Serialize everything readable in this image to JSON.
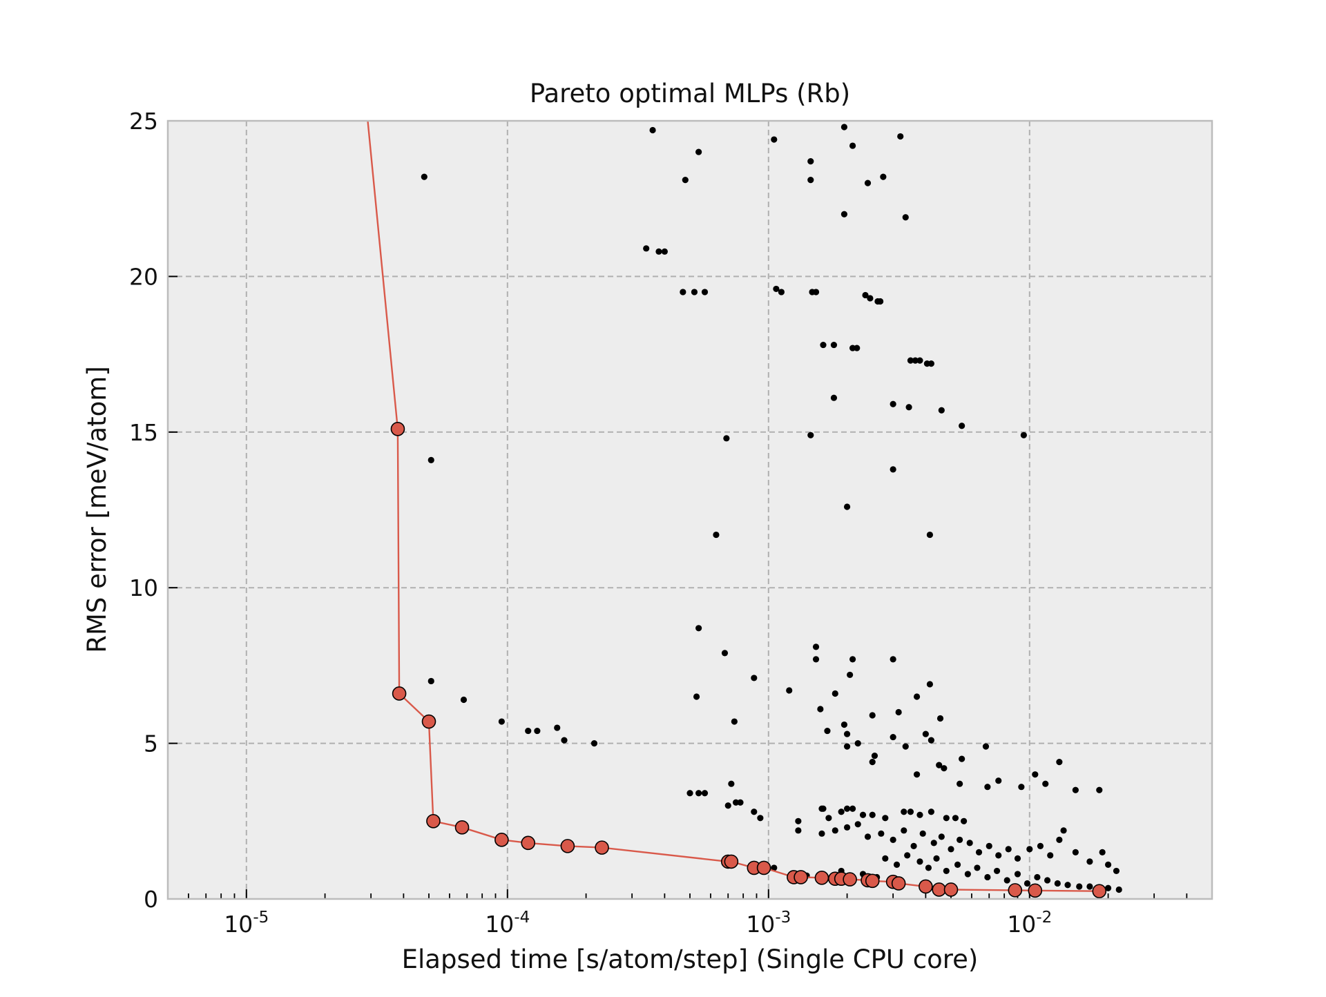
{
  "chart_data": {
    "type": "scatter",
    "title": "Pareto optimal MLPs (Rb)",
    "xlabel": "Elapsed time [s/atom/step] (Single CPU core)",
    "ylabel": "RMS error [meV/atom]",
    "x_scale": "log",
    "xlim": [
      5e-06,
      0.05
    ],
    "ylim": [
      0,
      25
    ],
    "x_ticks": [
      {
        "base": "10",
        "exp": "-5",
        "value": 1e-05
      },
      {
        "base": "10",
        "exp": "-4",
        "value": 0.0001
      },
      {
        "base": "10",
        "exp": "-3",
        "value": 0.001
      },
      {
        "base": "10",
        "exp": "-2",
        "value": 0.01
      }
    ],
    "y_ticks": [
      "0",
      "5",
      "10",
      "15",
      "20",
      "25"
    ],
    "y_tick_values": [
      0,
      5,
      10,
      15,
      20,
      25
    ],
    "grid": true,
    "colors": {
      "background": "#ededed",
      "front": "#d9594a",
      "points": "#000000",
      "grid": "#b0b0b0",
      "frame": "#bcbcbc"
    },
    "series": [
      {
        "marker": "small-black-dot",
        "points": [
          [
            4.8e-05,
            23.2
          ],
          [
            0.00036,
            24.7
          ],
          [
            0.00054,
            24.0
          ],
          [
            0.00048,
            23.1
          ],
          [
            0.00105,
            24.4
          ],
          [
            0.00145,
            23.7
          ],
          [
            0.00145,
            23.1
          ],
          [
            0.00195,
            24.8
          ],
          [
            0.0021,
            24.2
          ],
          [
            0.0024,
            23.0
          ],
          [
            0.00275,
            23.2
          ],
          [
            0.0032,
            24.5
          ],
          [
            0.00195,
            22.0
          ],
          [
            0.00335,
            21.9
          ],
          [
            0.00034,
            20.9
          ],
          [
            0.00038,
            20.8
          ],
          [
            0.0004,
            20.8
          ],
          [
            0.00047,
            19.5
          ],
          [
            0.00052,
            19.5
          ],
          [
            0.00057,
            19.5
          ],
          [
            0.00107,
            19.6
          ],
          [
            0.00112,
            19.5
          ],
          [
            0.00147,
            19.5
          ],
          [
            0.00152,
            19.5
          ],
          [
            0.00235,
            19.4
          ],
          [
            0.00245,
            19.3
          ],
          [
            0.00262,
            19.2
          ],
          [
            0.00268,
            19.2
          ],
          [
            0.00162,
            17.8
          ],
          [
            0.00178,
            17.8
          ],
          [
            0.0021,
            17.7
          ],
          [
            0.00218,
            17.7
          ],
          [
            0.0035,
            17.3
          ],
          [
            0.00365,
            17.3
          ],
          [
            0.0038,
            17.3
          ],
          [
            0.00405,
            17.2
          ],
          [
            0.0042,
            17.2
          ],
          [
            0.00178,
            16.1
          ],
          [
            0.003,
            15.9
          ],
          [
            0.00345,
            15.8
          ],
          [
            0.0046,
            15.7
          ],
          [
            0.0055,
            15.2
          ],
          [
            0.0095,
            14.9
          ],
          [
            5.1e-05,
            14.1
          ],
          [
            0.00069,
            14.8
          ],
          [
            0.00145,
            14.9
          ],
          [
            0.003,
            13.8
          ],
          [
            0.002,
            12.6
          ],
          [
            0.00063,
            11.7
          ],
          [
            0.00415,
            11.7
          ],
          [
            0.00054,
            8.7
          ],
          [
            0.00068,
            7.9
          ],
          [
            0.00152,
            8.1
          ],
          [
            0.00152,
            7.7
          ],
          [
            0.0021,
            7.7
          ],
          [
            0.003,
            7.7
          ],
          [
            0.00088,
            7.1
          ],
          [
            0.00205,
            7.2
          ],
          [
            0.0012,
            6.7
          ],
          [
            0.0018,
            6.6
          ],
          [
            0.00415,
            6.9
          ],
          [
            0.0037,
            6.5
          ],
          [
            0.00053,
            6.5
          ],
          [
            0.00158,
            6.1
          ],
          [
            0.0025,
            5.9
          ],
          [
            0.00315,
            6.0
          ],
          [
            0.00074,
            5.7
          ],
          [
            0.00195,
            5.6
          ],
          [
            0.00455,
            5.8
          ],
          [
            0.00168,
            5.4
          ],
          [
            0.002,
            5.3
          ],
          [
            0.0022,
            5.0
          ],
          [
            0.002,
            4.9
          ],
          [
            0.003,
            5.2
          ],
          [
            0.00335,
            4.9
          ],
          [
            0.004,
            5.3
          ],
          [
            0.0042,
            5.1
          ],
          [
            5.1e-05,
            7.0
          ],
          [
            6.8e-05,
            6.4
          ],
          [
            9.5e-05,
            5.7
          ],
          [
            0.00012,
            5.4
          ],
          [
            0.00013,
            5.4
          ],
          [
            0.000155,
            5.5
          ],
          [
            0.000165,
            5.1
          ],
          [
            0.000215,
            5.0
          ],
          [
            0.0068,
            4.9
          ],
          [
            0.00255,
            4.6
          ],
          [
            0.0025,
            4.4
          ],
          [
            0.0045,
            4.3
          ],
          [
            0.0047,
            4.2
          ],
          [
            0.0037,
            4.0
          ],
          [
            0.0055,
            4.5
          ],
          [
            0.0076,
            3.8
          ],
          [
            0.0054,
            3.7
          ],
          [
            0.0069,
            3.6
          ],
          [
            0.0093,
            3.6
          ],
          [
            0.0105,
            4.0
          ],
          [
            0.0115,
            3.7
          ],
          [
            0.013,
            4.4
          ],
          [
            0.015,
            3.5
          ],
          [
            0.0185,
            3.5
          ],
          [
            0.00072,
            3.7
          ],
          [
            0.00075,
            3.1
          ],
          [
            0.00078,
            3.1
          ],
          [
            0.0007,
            3.0
          ],
          [
            0.0005,
            3.4
          ],
          [
            0.00054,
            3.4
          ],
          [
            0.00057,
            3.4
          ],
          [
            0.00088,
            2.8
          ],
          [
            0.00093,
            2.6
          ],
          [
            0.0013,
            2.5
          ],
          [
            0.0013,
            2.2
          ],
          [
            0.0016,
            2.9
          ],
          [
            0.00162,
            2.9
          ],
          [
            0.0017,
            2.6
          ],
          [
            0.0019,
            2.8
          ],
          [
            0.002,
            2.9
          ],
          [
            0.0021,
            2.9
          ],
          [
            0.0023,
            2.7
          ],
          [
            0.0025,
            2.7
          ],
          [
            0.0028,
            2.6
          ],
          [
            0.0033,
            2.8
          ],
          [
            0.0035,
            2.8
          ],
          [
            0.0038,
            2.7
          ],
          [
            0.0042,
            2.8
          ],
          [
            0.0048,
            2.6
          ],
          [
            0.0052,
            2.6
          ],
          [
            0.0056,
            2.5
          ],
          [
            0.0016,
            2.1
          ],
          [
            0.0018,
            2.2
          ],
          [
            0.002,
            2.3
          ],
          [
            0.0022,
            2.4
          ],
          [
            0.0024,
            2.0
          ],
          [
            0.0027,
            2.1
          ],
          [
            0.003,
            1.9
          ],
          [
            0.0033,
            2.2
          ],
          [
            0.0036,
            1.7
          ],
          [
            0.0039,
            2.1
          ],
          [
            0.0043,
            1.8
          ],
          [
            0.0046,
            2.0
          ],
          [
            0.005,
            1.6
          ],
          [
            0.0054,
            1.9
          ],
          [
            0.0059,
            1.8
          ],
          [
            0.0064,
            1.5
          ],
          [
            0.007,
            1.7
          ],
          [
            0.0076,
            1.4
          ],
          [
            0.0083,
            1.6
          ],
          [
            0.009,
            1.3
          ],
          [
            0.01,
            1.6
          ],
          [
            0.011,
            1.7
          ],
          [
            0.012,
            1.4
          ],
          [
            0.013,
            1.9
          ],
          [
            0.0135,
            2.2
          ],
          [
            0.015,
            1.5
          ],
          [
            0.017,
            1.2
          ],
          [
            0.019,
            1.5
          ],
          [
            0.02,
            1.1
          ],
          [
            0.0215,
            0.9
          ],
          [
            0.0028,
            1.3
          ],
          [
            0.0031,
            1.1
          ],
          [
            0.0034,
            1.4
          ],
          [
            0.0038,
            1.2
          ],
          [
            0.0041,
            1.0
          ],
          [
            0.0044,
            1.3
          ],
          [
            0.0048,
            0.9
          ],
          [
            0.0053,
            1.1
          ],
          [
            0.0058,
            0.8
          ],
          [
            0.0063,
            1.0
          ],
          [
            0.0069,
            0.7
          ],
          [
            0.0075,
            0.9
          ],
          [
            0.0082,
            0.6
          ],
          [
            0.009,
            0.8
          ],
          [
            0.0098,
            0.5
          ],
          [
            0.0107,
            0.7
          ],
          [
            0.0117,
            0.6
          ],
          [
            0.0128,
            0.5
          ],
          [
            0.014,
            0.45
          ],
          [
            0.0155,
            0.4
          ],
          [
            0.017,
            0.4
          ],
          [
            0.0185,
            0.35
          ],
          [
            0.02,
            0.35
          ],
          [
            0.022,
            0.3
          ],
          [
            0.0019,
            0.9
          ],
          [
            0.0023,
            0.8
          ],
          [
            0.0026,
            0.7
          ],
          [
            0.00105,
            1.0
          ],
          [
            0.0014,
            0.75
          ]
        ]
      },
      {
        "name": "",
        "marker": "red-circle",
        "line": true,
        "points": [
          [
            2.9e-05,
            25.2
          ],
          [
            3.8e-05,
            15.1
          ],
          [
            3.85e-05,
            6.6
          ],
          [
            5e-05,
            5.7
          ],
          [
            5.2e-05,
            2.5
          ],
          [
            6.7e-05,
            2.3
          ],
          [
            9.5e-05,
            1.9
          ],
          [
            0.00012,
            1.8
          ],
          [
            0.00017,
            1.7
          ],
          [
            0.00023,
            1.65
          ],
          [
            0.0007,
            1.2
          ],
          [
            0.00072,
            1.2
          ],
          [
            0.00088,
            1.0
          ],
          [
            0.00096,
            1.0
          ],
          [
            0.00125,
            0.7
          ],
          [
            0.00133,
            0.7
          ],
          [
            0.0016,
            0.68
          ],
          [
            0.0018,
            0.65
          ],
          [
            0.0019,
            0.65
          ],
          [
            0.00205,
            0.63
          ],
          [
            0.0024,
            0.6
          ],
          [
            0.0025,
            0.58
          ],
          [
            0.003,
            0.55
          ],
          [
            0.00315,
            0.5
          ],
          [
            0.004,
            0.4
          ],
          [
            0.0045,
            0.3
          ],
          [
            0.005,
            0.3
          ],
          [
            0.0088,
            0.28
          ],
          [
            0.0105,
            0.27
          ],
          [
            0.0185,
            0.25
          ]
        ]
      }
    ]
  }
}
